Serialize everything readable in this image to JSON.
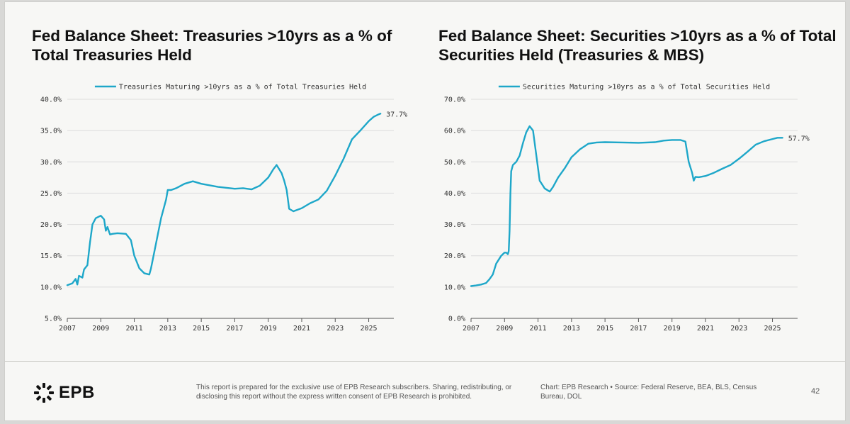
{
  "chart_data": [
    {
      "type": "line",
      "title": "Fed Balance Sheet: Treasuries >10yrs as a % of Total Treasuries Held",
      "legend_position": "top",
      "grid": true,
      "ylim": [
        5.0,
        40.0
      ],
      "y_ticks": [
        5.0,
        10.0,
        15.0,
        20.0,
        25.0,
        30.0,
        35.0,
        40.0
      ],
      "y_tick_labels": [
        "5.0%",
        "10.0%",
        "15.0%",
        "20.0%",
        "25.0%",
        "30.0%",
        "35.0%",
        "40.0%"
      ],
      "xlim": [
        2007,
        2026.5
      ],
      "x_ticks": [
        2007,
        2009,
        2011,
        2013,
        2015,
        2017,
        2019,
        2021,
        2023,
        2025
      ],
      "x_tick_labels": [
        "2007",
        "2009",
        "2011",
        "2013",
        "2015",
        "2017",
        "2019",
        "2021",
        "2023",
        "2025"
      ],
      "series": [
        {
          "name": "Treasuries Maturing >10yrs as a % of Total Treasuries Held",
          "color": "#1ea7c9",
          "end_label": "37.7%",
          "x": [
            2007.0,
            2007.3,
            2007.5,
            2007.6,
            2007.7,
            2007.9,
            2008.0,
            2008.2,
            2008.35,
            2008.5,
            2008.7,
            2009.0,
            2009.2,
            2009.3,
            2009.4,
            2009.55,
            2009.7,
            2010.0,
            2010.5,
            2010.8,
            2011.0,
            2011.3,
            2011.6,
            2011.9,
            2012.0,
            2012.3,
            2012.6,
            2012.9,
            2013.0,
            2013.2,
            2013.5,
            2014.0,
            2014.5,
            2015.0,
            2016.0,
            2017.0,
            2017.5,
            2018.0,
            2018.5,
            2019.0,
            2019.3,
            2019.5,
            2019.8,
            2019.95,
            2020.1,
            2020.25,
            2020.5,
            2021.0,
            2021.5,
            2022.0,
            2022.5,
            2023.0,
            2023.5,
            2024.0,
            2024.5,
            2025.0,
            2025.3,
            2025.6,
            2025.7
          ],
          "y": [
            10.3,
            10.6,
            11.3,
            10.4,
            11.8,
            11.5,
            12.8,
            13.5,
            17.0,
            20.0,
            21.0,
            21.4,
            20.8,
            19.0,
            19.6,
            18.4,
            18.5,
            18.6,
            18.5,
            17.5,
            15.0,
            13.0,
            12.2,
            12.0,
            13.0,
            17.0,
            21.0,
            24.0,
            25.5,
            25.5,
            25.8,
            26.5,
            26.9,
            26.5,
            26.0,
            25.7,
            25.8,
            25.6,
            26.2,
            27.5,
            28.8,
            29.5,
            28.2,
            27.0,
            25.5,
            22.5,
            22.1,
            22.6,
            23.4,
            24.0,
            25.4,
            27.8,
            30.5,
            33.6,
            35.0,
            36.5,
            37.2,
            37.6,
            37.7
          ]
        }
      ]
    },
    {
      "type": "line",
      "title": "Fed Balance Sheet: Securities >10yrs as a % of Total Securities Held (Treasuries & MBS)",
      "legend_position": "top",
      "grid": true,
      "ylim": [
        0.0,
        70.0
      ],
      "y_ticks": [
        0.0,
        10.0,
        20.0,
        30.0,
        40.0,
        50.0,
        60.0,
        70.0
      ],
      "y_tick_labels": [
        "0.0%",
        "10.0%",
        "20.0%",
        "30.0%",
        "40.0%",
        "50.0%",
        "60.0%",
        "70.0%"
      ],
      "xlim": [
        2007,
        2026.5
      ],
      "x_ticks": [
        2007,
        2009,
        2011,
        2013,
        2015,
        2017,
        2019,
        2021,
        2023,
        2025
      ],
      "x_tick_labels": [
        "2007",
        "2009",
        "2011",
        "2013",
        "2015",
        "2017",
        "2019",
        "2021",
        "2023",
        "2025"
      ],
      "series": [
        {
          "name": "Securities Maturing >10yrs as a % of Total Securities Held",
          "color": "#1ea7c9",
          "end_label": "57.7%",
          "x": [
            2007.0,
            2007.3,
            2007.6,
            2007.9,
            2008.1,
            2008.3,
            2008.5,
            2008.8,
            2009.0,
            2009.1,
            2009.15,
            2009.2,
            2009.25,
            2009.3,
            2009.35,
            2009.4,
            2009.5,
            2009.7,
            2009.9,
            2010.1,
            2010.3,
            2010.5,
            2010.7,
            2010.9,
            2011.1,
            2011.4,
            2011.7,
            2011.9,
            2012.2,
            2012.6,
            2013.0,
            2013.5,
            2014.0,
            2014.5,
            2015.0,
            2016.0,
            2017.0,
            2018.0,
            2018.5,
            2019.0,
            2019.5,
            2019.8,
            2020.0,
            2020.2,
            2020.3,
            2020.4,
            2020.6,
            2021.0,
            2021.5,
            2022.0,
            2022.5,
            2023.0,
            2023.5,
            2024.0,
            2024.5,
            2025.0,
            2025.3,
            2025.6
          ],
          "y": [
            10.3,
            10.5,
            10.8,
            11.3,
            12.5,
            14.0,
            17.5,
            20.0,
            21.0,
            21.0,
            20.8,
            20.5,
            21.5,
            28.0,
            40.0,
            47.0,
            49.0,
            50.0,
            52.0,
            56.0,
            59.5,
            61.4,
            60.0,
            52.0,
            44.0,
            41.5,
            40.5,
            42.0,
            45.0,
            48.0,
            51.5,
            54.0,
            55.8,
            56.2,
            56.3,
            56.2,
            56.1,
            56.3,
            56.8,
            57.0,
            57.0,
            56.5,
            50.0,
            46.5,
            44.0,
            45.2,
            45.1,
            45.5,
            46.5,
            47.8,
            49.0,
            51.0,
            53.2,
            55.5,
            56.6,
            57.3,
            57.7,
            57.7
          ]
        }
      ]
    }
  ],
  "footer": {
    "logo_text": "EPB",
    "disclaimer": "This report is prepared for the exclusive use of EPB Research subscribers. Sharing, redistributing, or disclosing this report without the express written consent of EPB Research is prohibited.",
    "source": "Chart: EPB Research  •  Source: Federal Reserve, BEA, BLS, Census Bureau, DOL",
    "page_number": "42"
  }
}
